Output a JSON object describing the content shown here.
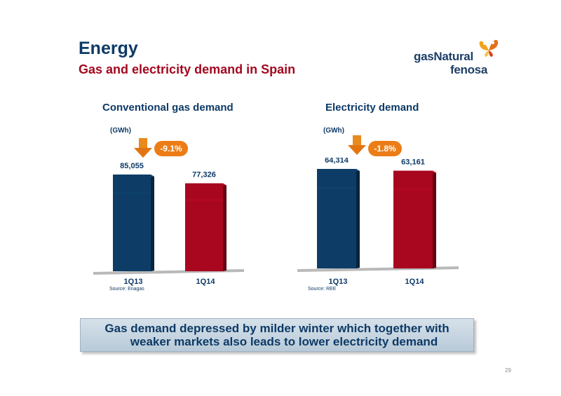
{
  "header": {
    "title": "Energy",
    "subtitle": "Gas and electricity demand in Spain"
  },
  "logo": {
    "line1": "gasNatural",
    "line2": "fenosa"
  },
  "chart_data": [
    {
      "type": "bar",
      "title": "Conventional gas demand",
      "unit_label": "(GWh)",
      "categories": [
        "1Q13",
        "1Q14"
      ],
      "values": [
        85055,
        77326
      ],
      "value_labels": [
        "85,055",
        "77,326"
      ],
      "colors": [
        "#0d3d66",
        "#a8071f"
      ],
      "change_label": "-9.1%",
      "source": "Source: Enagas"
    },
    {
      "type": "bar",
      "title": "Electricity demand",
      "unit_label": "(GWh)",
      "categories": [
        "1Q13",
        "1Q14"
      ],
      "values": [
        64314,
        63161
      ],
      "value_labels": [
        "64,314",
        "63,161"
      ],
      "colors": [
        "#0d3d66",
        "#a8071f"
      ],
      "change_label": "-1.8%",
      "source": "Source: REE"
    }
  ],
  "banner": {
    "line1": "Gas demand depressed by milder winter which together with",
    "line2": "weaker markets also leads to lower electricity demand"
  },
  "page_number": "29",
  "colors": {
    "accent": "#a3081f",
    "primary": "#0d3a66",
    "badge": "#ec7d16"
  }
}
